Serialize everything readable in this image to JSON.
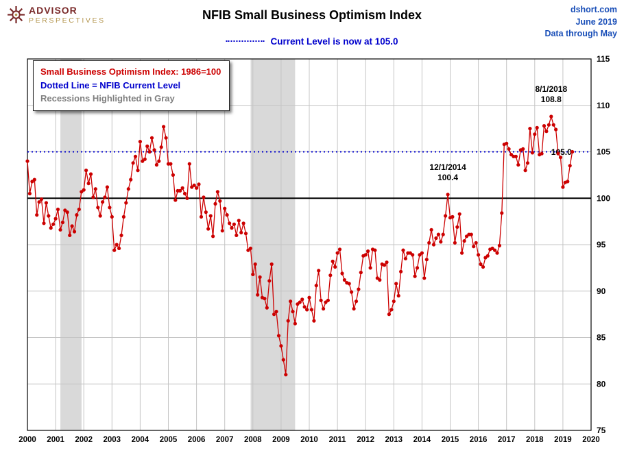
{
  "header": {
    "logo": {
      "line1": "ADVISOR",
      "line2": "PERSPECTIVES",
      "icon": "compass-star-icon"
    },
    "title": "NFIB Small Business Optimism Index",
    "source": "dshort.com",
    "date": "June 2019",
    "note": "Data through May"
  },
  "subtitle": {
    "text": "Current Level is now at 105.0"
  },
  "legend": {
    "line1": "Small Business Optimism Index: 1986=100",
    "line2": "Dotted Line = NFIB Current Level",
    "line3": "Recessions Highlighted in Gray",
    "colors": {
      "line1": "#cc0000",
      "line2": "#0000cc",
      "line3": "#808080"
    }
  },
  "chart_data": {
    "type": "line",
    "title": "NFIB Small Business Optimism Index",
    "x_start_year": 2000,
    "x_end_year": 2020,
    "ylim": [
      75,
      115
    ],
    "y_ticks": [
      75,
      80,
      85,
      90,
      95,
      100,
      105,
      110,
      115
    ],
    "x_ticks": [
      2000,
      2001,
      2002,
      2003,
      2004,
      2005,
      2006,
      2007,
      2008,
      2009,
      2010,
      2011,
      2012,
      2013,
      2014,
      2015,
      2016,
      2017,
      2018,
      2019,
      2020
    ],
    "grid": true,
    "legend_position": "top-left",
    "current_level": 105.0,
    "recessions": [
      {
        "start": 2001.17,
        "end": 2001.92
      },
      {
        "start": 2007.92,
        "end": 2009.5
      }
    ],
    "recession_color": "#d9d9d9",
    "reference_lines": [
      {
        "name": "baseline-100-line",
        "value": 100,
        "style": "solid",
        "color": "#000000",
        "width": 2
      },
      {
        "name": "current-level-dotted-line",
        "value": 105,
        "style": "dotted",
        "color": "#0000cc",
        "width": 2
      }
    ],
    "annotations": [
      {
        "name": "annotation-2018-peak",
        "x_year": 2018.583,
        "anchor_value": 108.8,
        "lines": [
          "8/1/2018",
          "108.8"
        ]
      },
      {
        "name": "annotation-2014-point",
        "x_year": 2014.917,
        "anchor_value": 100.4,
        "lines": [
          "12/1/2014",
          "100.4"
        ]
      }
    ],
    "current_level_label": {
      "text": "105.0",
      "x_year": 2018.95,
      "value": 105.0
    },
    "series": [
      {
        "name": "Small Business Optimism Index",
        "color": "#cc0000",
        "start": "2000-01",
        "frequency": "monthly",
        "values": [
          104.0,
          100.5,
          101.8,
          102.0,
          98.2,
          99.6,
          99.9,
          97.3,
          99.5,
          98.1,
          96.8,
          97.2,
          97.8,
          98.8,
          96.6,
          97.4,
          98.7,
          98.5,
          96.0,
          97.0,
          96.4,
          98.2,
          98.8,
          100.7,
          100.9,
          103.0,
          101.6,
          102.6,
          100.1,
          101.0,
          99.0,
          98.1,
          99.6,
          100.1,
          101.2,
          99.0,
          98.0,
          94.4,
          95.0,
          94.6,
          96.0,
          98.0,
          99.5,
          101.0,
          102.0,
          103.8,
          104.5,
          103.0,
          106.1,
          104.0,
          104.2,
          105.6,
          105.0,
          106.5,
          105.2,
          103.6,
          104.0,
          105.5,
          107.7,
          106.5,
          103.7,
          103.7,
          102.5,
          99.8,
          100.8,
          100.8,
          101.1,
          100.5,
          100.0,
          103.7,
          101.2,
          101.4,
          101.1,
          101.5,
          98.0,
          100.1,
          98.5,
          96.7,
          98.1,
          95.9,
          99.4,
          100.7,
          99.7,
          96.5,
          98.9,
          98.2,
          97.3,
          96.8,
          97.2,
          96.0,
          97.6,
          96.3,
          97.3,
          96.2,
          94.4,
          94.6,
          91.8,
          92.9,
          89.6,
          91.5,
          89.3,
          89.2,
          88.2,
          91.1,
          92.9,
          87.5,
          87.8,
          85.2,
          84.1,
          82.6,
          81.0,
          86.8,
          88.9,
          87.8,
          86.5,
          88.6,
          88.8,
          89.1,
          88.3,
          88.0,
          89.3,
          88.0,
          86.8,
          90.6,
          92.2,
          89.0,
          88.1,
          88.8,
          89.0,
          91.7,
          93.2,
          92.6,
          94.1,
          94.5,
          91.9,
          91.2,
          90.9,
          90.8,
          89.9,
          88.1,
          88.9,
          90.2,
          92.0,
          93.8,
          93.9,
          94.3,
          92.5,
          94.5,
          94.4,
          91.4,
          91.2,
          92.9,
          92.8,
          93.1,
          87.5,
          88.0,
          88.9,
          90.8,
          89.5,
          92.1,
          94.4,
          93.5,
          94.1,
          94.1,
          93.9,
          91.6,
          92.5,
          93.9,
          94.1,
          91.4,
          93.4,
          95.2,
          96.6,
          95.0,
          95.7,
          96.1,
          95.3,
          96.1,
          98.1,
          100.4,
          97.9,
          98.0,
          95.2,
          96.9,
          98.3,
          94.1,
          95.4,
          95.9,
          96.1,
          96.1,
          94.8,
          95.2,
          93.9,
          92.9,
          92.6,
          93.6,
          93.8,
          94.5,
          94.6,
          94.4,
          94.1,
          94.9,
          98.4,
          105.8,
          105.9,
          105.3,
          104.7,
          104.5,
          104.5,
          103.6,
          105.2,
          105.3,
          103.0,
          103.8,
          107.5,
          104.9,
          106.9,
          107.6,
          104.7,
          104.8,
          107.8,
          107.2,
          107.9,
          108.8,
          107.9,
          107.4,
          104.8,
          104.4,
          101.2,
          101.7,
          101.8,
          103.5,
          105.0
        ]
      }
    ]
  }
}
